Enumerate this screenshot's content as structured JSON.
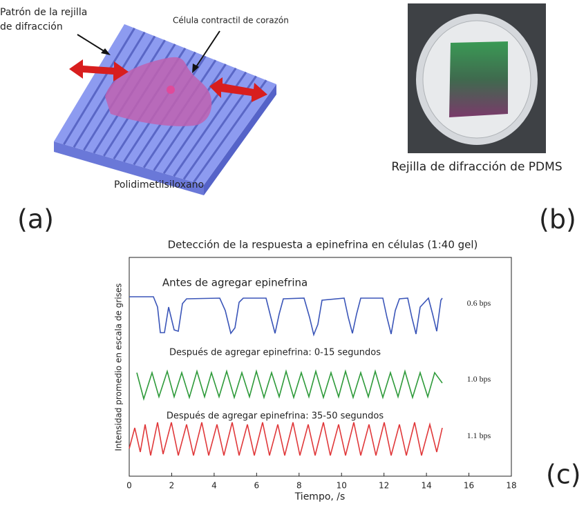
{
  "panel_a": {
    "grating_label": [
      "Patrón de la rejilla",
      "de difracción"
    ],
    "cell_label": "Célula contractil de corazón",
    "material_label": "Polidimetilsiloxano",
    "tag": "(a)"
  },
  "panel_b": {
    "caption": "Rejilla de difracción de PDMS",
    "tag": "(b)"
  },
  "panel_c": {
    "tag": "(c)"
  },
  "chart_data": {
    "type": "line",
    "title": "Detección de la respuesta a epinefrina en células (1:40 gel)",
    "x_label": "Tiempo, /s",
    "y_label": "Intensidad promedio en escala de grises",
    "xlim": [
      0,
      18
    ],
    "xticks": [
      0,
      2,
      4,
      6,
      8,
      10,
      12,
      14,
      16,
      18
    ],
    "traces": [
      {
        "name": "Antes de agregar epinefrina",
        "rate": "0.6 bps",
        "color": "#3a55b8"
      },
      {
        "name": "Después de agregar epinefrina: 0-15 segundos",
        "rate": "1.0 bps",
        "color": "#2e9a3a"
      },
      {
        "name": "Después de agregar epinefrina: 35-50 segundos",
        "rate": "1.1 bps",
        "color": "#e0383a"
      }
    ]
  }
}
